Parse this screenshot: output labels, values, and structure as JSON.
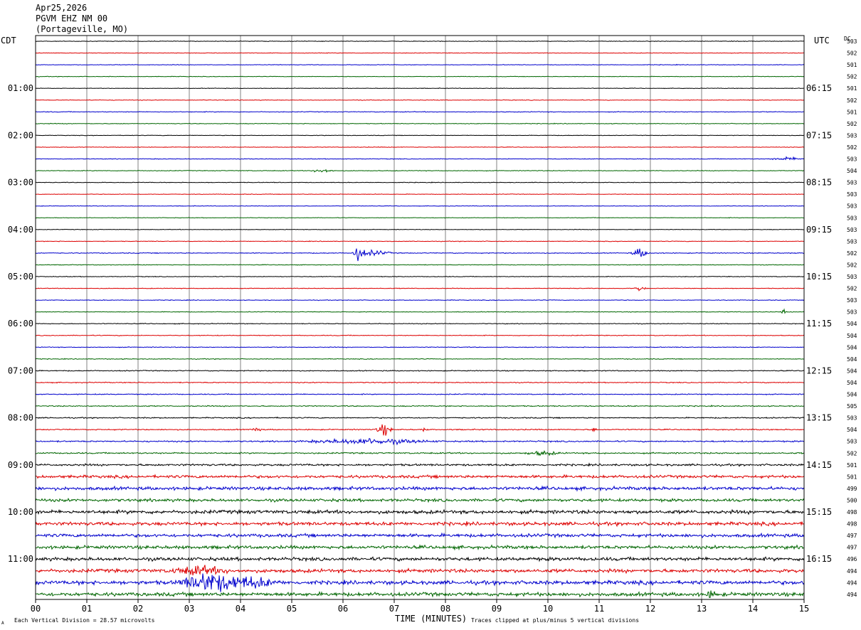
{
  "header": {
    "date": "Apr25,2026",
    "station": "PGVM EHZ NM 00",
    "location": "(Portageville, MO)"
  },
  "left_axis_title": "CDT",
  "right_axis_title": "UTC",
  "dc_title": "DC",
  "bottom_note_left": "Each Vertical Division =   28.57 microvolts",
  "bottom_note_right": "Traces clipped at plus/minus 5 vertical divisions",
  "corner_mark": "A",
  "chart_data": {
    "type": "line",
    "xlabel": "TIME (MINUTES)",
    "xlim": [
      0,
      15
    ],
    "x_ticks": [
      "00",
      "01",
      "02",
      "03",
      "04",
      "05",
      "06",
      "07",
      "08",
      "09",
      "10",
      "11",
      "12",
      "13",
      "14",
      "15"
    ],
    "trace_colors": [
      "#000000",
      "#dd0000",
      "#0000cc",
      "#006600"
    ],
    "row_count": 48,
    "left_time_labels": [
      {
        "row": 4,
        "label": "01:00"
      },
      {
        "row": 8,
        "label": "02:00"
      },
      {
        "row": 12,
        "label": "03:00"
      },
      {
        "row": 16,
        "label": "04:00"
      },
      {
        "row": 20,
        "label": "05:00"
      },
      {
        "row": 24,
        "label": "06:00"
      },
      {
        "row": 28,
        "label": "07:00"
      },
      {
        "row": 32,
        "label": "08:00"
      },
      {
        "row": 36,
        "label": "09:00"
      },
      {
        "row": 40,
        "label": "10:00"
      },
      {
        "row": 44,
        "label": "11:00"
      }
    ],
    "right_time_labels": [
      {
        "row": 4,
        "label": "06:15"
      },
      {
        "row": 8,
        "label": "07:15"
      },
      {
        "row": 12,
        "label": "08:15"
      },
      {
        "row": 16,
        "label": "09:15"
      },
      {
        "row": 20,
        "label": "10:15"
      },
      {
        "row": 24,
        "label": "11:15"
      },
      {
        "row": 28,
        "label": "12:15"
      },
      {
        "row": 32,
        "label": "13:15"
      },
      {
        "row": 36,
        "label": "14:15"
      },
      {
        "row": 40,
        "label": "15:15"
      },
      {
        "row": 44,
        "label": "16:15"
      }
    ],
    "dc_values": [
      "503",
      "502",
      "501",
      "502",
      "501",
      "502",
      "501",
      "502",
      "503",
      "502",
      "503",
      "504",
      "503",
      "503",
      "503",
      "503",
      "503",
      "503",
      "502",
      "502",
      "503",
      "502",
      "503",
      "503",
      "504",
      "504",
      "504",
      "504",
      "504",
      "504",
      "504",
      "505",
      "503",
      "504",
      "503",
      "502",
      "501",
      "501",
      "499",
      "500",
      "498",
      "498",
      "497",
      "497",
      "496",
      "494",
      "494",
      "494"
    ],
    "noise_levels": [
      0.12,
      0.12,
      0.12,
      0.12,
      0.12,
      0.14,
      0.16,
      0.14,
      0.12,
      0.12,
      0.14,
      0.14,
      0.13,
      0.12,
      0.12,
      0.12,
      0.12,
      0.14,
      0.18,
      0.14,
      0.14,
      0.14,
      0.14,
      0.14,
      0.16,
      0.16,
      0.16,
      0.16,
      0.2,
      0.2,
      0.2,
      0.22,
      0.24,
      0.24,
      0.3,
      0.3,
      0.42,
      0.6,
      0.7,
      0.62,
      0.75,
      0.72,
      0.7,
      0.7,
      0.72,
      0.75,
      0.82,
      0.78
    ],
    "events": [
      {
        "row": 10,
        "minute": 14.7,
        "amp": 0.5,
        "width": 0.4
      },
      {
        "row": 11,
        "minute": 5.6,
        "amp": 0.7,
        "width": 0.25
      },
      {
        "row": 18,
        "minute": 6.3,
        "amp": 2.2,
        "width": 0.15
      },
      {
        "row": 18,
        "minute": 6.6,
        "amp": 0.8,
        "width": 0.4
      },
      {
        "row": 18,
        "minute": 11.8,
        "amp": 1.4,
        "width": 0.2
      },
      {
        "row": 21,
        "minute": 11.8,
        "amp": 0.7,
        "width": 0.15
      },
      {
        "row": 23,
        "minute": 14.6,
        "amp": 0.8,
        "width": 0.06
      },
      {
        "row": 33,
        "minute": 4.3,
        "amp": 1.2,
        "width": 0.1
      },
      {
        "row": 33,
        "minute": 6.8,
        "amp": 1.8,
        "width": 0.18
      },
      {
        "row": 33,
        "minute": 7.6,
        "amp": 0.9,
        "width": 0.05
      },
      {
        "row": 33,
        "minute": 10.9,
        "amp": 0.9,
        "width": 0.05
      },
      {
        "row": 34,
        "minute": 6.5,
        "amp": 0.8,
        "width": 1.5
      },
      {
        "row": 35,
        "minute": 9.9,
        "amp": 0.6,
        "width": 0.4
      },
      {
        "row": 46,
        "minute": 3.4,
        "amp": 3.0,
        "width": 0.7
      },
      {
        "row": 46,
        "minute": 4.2,
        "amp": 1.6,
        "width": 0.6
      },
      {
        "row": 45,
        "minute": 3.2,
        "amp": 1.2,
        "width": 0.7
      },
      {
        "row": 47,
        "minute": 13.2,
        "amp": 1.0,
        "width": 0.15
      }
    ]
  }
}
